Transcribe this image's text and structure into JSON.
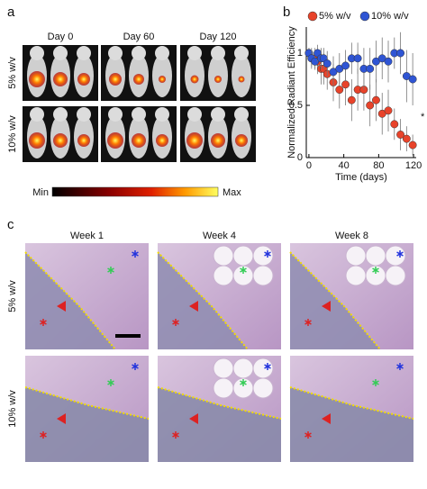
{
  "panel_labels": [
    "a",
    "b",
    "c"
  ],
  "panel_a": {
    "columns": [
      "Day 0",
      "Day 60",
      "Day 120"
    ],
    "rows": [
      "5% w/v",
      "10% w/v"
    ],
    "colorbar": {
      "min": "Min",
      "max": "Max"
    }
  },
  "chart_data": {
    "type": "scatter",
    "y_label": "Normalized Radiant Efficiency",
    "x_label": "Time (days)",
    "x": [
      0,
      3,
      7,
      10,
      14,
      17,
      21,
      28,
      35,
      42,
      49,
      56,
      63,
      70,
      77,
      84,
      91,
      98,
      105,
      112,
      119
    ],
    "series": [
      {
        "name": "5% w/v",
        "color": "#e8432a",
        "values": [
          1.0,
          0.95,
          0.95,
          0.92,
          0.85,
          0.85,
          0.8,
          0.72,
          0.65,
          0.7,
          0.55,
          0.65,
          0.65,
          0.5,
          0.55,
          0.42,
          0.45,
          0.32,
          0.22,
          0.18,
          0.12
        ],
        "errors": [
          0.05,
          0.1,
          0.1,
          0.12,
          0.15,
          0.15,
          0.15,
          0.18,
          0.18,
          0.2,
          0.2,
          0.2,
          0.2,
          0.2,
          0.2,
          0.2,
          0.2,
          0.15,
          0.15,
          0.12,
          0.1
        ]
      },
      {
        "name": "10% w/v",
        "color": "#2f55d4",
        "values": [
          1.0,
          0.95,
          0.92,
          1.0,
          0.95,
          0.95,
          0.9,
          0.82,
          0.85,
          0.88,
          0.95,
          0.95,
          0.85,
          0.85,
          0.92,
          0.95,
          0.92,
          1.0,
          1.0,
          0.78,
          0.75
        ],
        "errors": [
          0.05,
          0.08,
          0.08,
          0.08,
          0.1,
          0.1,
          0.12,
          0.15,
          0.15,
          0.15,
          0.15,
          0.15,
          0.2,
          0.2,
          0.2,
          0.2,
          0.2,
          0.15,
          0.2,
          0.25,
          0.25
        ]
      }
    ],
    "xlim": [
      -3,
      123
    ],
    "ylim": [
      0,
      1.25
    ],
    "xticks": [
      0,
      40,
      80,
      120
    ],
    "yticks": [
      0,
      0.5,
      1
    ],
    "legend": "top",
    "annotation": "*"
  },
  "panel_c": {
    "columns": [
      "Week 1",
      "Week 4",
      "Week 8"
    ],
    "rows": [
      "5% w/v",
      "10% w/v"
    ]
  }
}
